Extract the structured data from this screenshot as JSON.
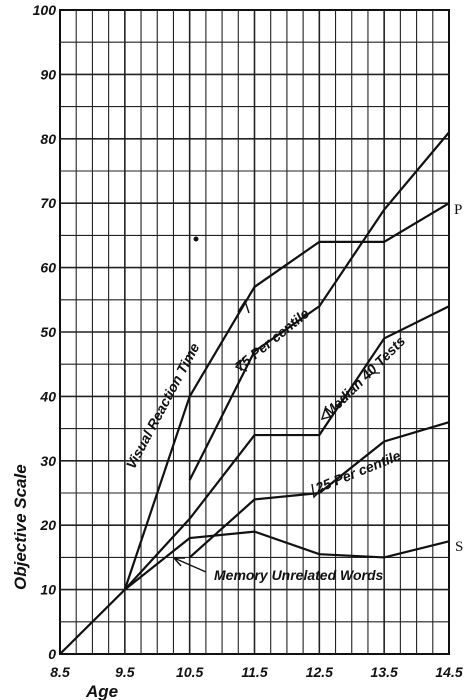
{
  "chart_data": {
    "type": "line",
    "xlabel": "Age",
    "ylabel": "Objective Scale",
    "x_ticks": [
      "8.5",
      "9.5",
      "10.5",
      "11.5",
      "12.5",
      "13.5",
      "14.5"
    ],
    "y_ticks": [
      "0",
      "10",
      "20",
      "30",
      "40",
      "50",
      "60",
      "70",
      "80",
      "90",
      "100"
    ],
    "xlim": [
      8.5,
      14.5
    ],
    "ylim": [
      0,
      100
    ],
    "grid": true,
    "series": [
      {
        "name": "Visual Reaction Time",
        "x": [
          8.5,
          9.5,
          10.5,
          11.5,
          12.5,
          13.5,
          14.5
        ],
        "y": [
          0,
          10,
          40,
          57,
          64,
          64,
          70
        ]
      },
      {
        "name": "75 Per centile",
        "x": [
          10.5,
          11.5,
          12.5,
          13.5,
          14.5
        ],
        "y": [
          27,
          47,
          54,
          69,
          81
        ]
      },
      {
        "name": "Median 40 Tests",
        "x": [
          9.5,
          10.5,
          11.5,
          12.5,
          13.5,
          14.5
        ],
        "y": [
          10,
          21,
          34,
          34,
          49,
          54
        ]
      },
      {
        "name": "25 Per centile",
        "x": [
          10.5,
          11.5,
          12.5,
          13.5,
          14.5
        ],
        "y": [
          15,
          24,
          25,
          33,
          36
        ]
      },
      {
        "name": "Memory Unrelated Words",
        "x": [
          9.5,
          10.5,
          11.5,
          12.5,
          13.5,
          14.5
        ],
        "y": [
          10,
          18,
          19,
          15.5,
          15,
          17.5
        ]
      }
    ],
    "annotations": [
      {
        "text": "Visual Reaction Time"
      },
      {
        "text": "75 Per centile"
      },
      {
        "text": "Median 40 Tests"
      },
      {
        "text": "25 Per centile"
      },
      {
        "text": "Memory Unrelated Words"
      }
    ],
    "side_labels": [
      "P",
      "S"
    ]
  }
}
